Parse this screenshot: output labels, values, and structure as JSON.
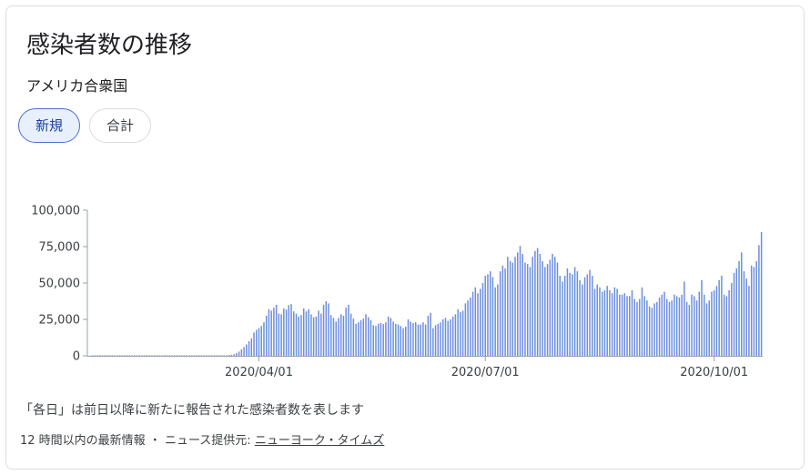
{
  "title": "感染者数の推移",
  "subtitle": "アメリカ合衆国",
  "tabs": [
    {
      "label": "新規",
      "active": true
    },
    {
      "label": "合計",
      "active": false
    }
  ],
  "footnote": "「各日」は前日以降に新たに報告された感染者数を表します",
  "source": {
    "prefix": "12 時間以内の最新情報 ・ ニュース提供元: ",
    "link": "ニューヨーク・タイムズ"
  },
  "colors": {
    "bar": "#6c8ee0",
    "axis": "#9aa0a6",
    "grid": "#e8eaed"
  },
  "chart_data": {
    "type": "bar",
    "title": "感染者数の推移",
    "ylim": [
      0,
      100000
    ],
    "yticks": [
      0,
      25000,
      50000,
      75000,
      100000
    ],
    "ytick_labels": [
      "0",
      "25,000",
      "50,000",
      "75,000",
      "100,000"
    ],
    "xtick_labels": [
      "2020/04/01",
      "2020/07/01",
      "2020/10/01"
    ],
    "xtick_index": [
      67,
      158,
      250
    ],
    "grid": false,
    "start_date": "2020/01/24",
    "values": [
      1,
      0,
      0,
      1,
      0,
      0,
      1,
      2,
      0,
      1,
      0,
      0,
      1,
      0,
      0,
      1,
      2,
      0,
      0,
      1,
      0,
      1,
      1,
      0,
      0,
      1,
      2,
      1,
      0,
      1,
      0,
      1,
      1,
      2,
      0,
      1,
      0,
      1,
      2,
      1,
      1,
      2,
      1,
      1,
      2,
      2,
      3,
      4,
      6,
      10,
      15,
      22,
      60,
      150,
      300,
      500,
      700,
      1100,
      1900,
      2900,
      4500,
      6000,
      7800,
      10000,
      12000,
      16000,
      17800,
      19000,
      20500,
      23000,
      27500,
      32000,
      31000,
      33000,
      35000,
      29000,
      28500,
      32500,
      31800,
      34800,
      35500,
      30500,
      29000,
      27000,
      28000,
      32500,
      30500,
      32000,
      28500,
      26500,
      27000,
      31000,
      29000,
      35000,
      37500,
      36000,
      28000,
      26000,
      23500,
      26000,
      28500,
      27500,
      33000,
      35000,
      29000,
      25500,
      22000,
      23000,
      24500,
      25500,
      28500,
      26500,
      24500,
      21000,
      20500,
      22000,
      22500,
      21800,
      23000,
      27000,
      26000,
      23500,
      22000,
      21500,
      20500,
      19000,
      20000,
      25000,
      23500,
      22500,
      23000,
      21500,
      21500,
      23000,
      21500,
      27500,
      29500,
      19000,
      21000,
      22000,
      23000,
      25000,
      26000,
      24000,
      25000,
      27000,
      28500,
      32000,
      30000,
      31000,
      36000,
      38000,
      40000,
      44000,
      47000,
      43000,
      46000,
      50000,
      55000,
      56000,
      58000,
      54000,
      47000,
      49000,
      58000,
      62000,
      60000,
      68000,
      65000,
      64000,
      68000,
      71000,
      75500,
      70000,
      64000,
      63000,
      61000,
      68000,
      72000,
      74000,
      70000,
      65000,
      61000,
      63000,
      66000,
      70000,
      68000,
      64000,
      55000,
      51000,
      55000,
      60000,
      57000,
      56000,
      61000,
      58000,
      52000,
      49000,
      54000,
      56000,
      59000,
      55000,
      46000,
      49000,
      47000,
      44000,
      45000,
      48000,
      45000,
      43000,
      47000,
      46000,
      42000,
      42000,
      43000,
      41000,
      41000,
      45000,
      39000,
      37000,
      39000,
      47000,
      41000,
      38000,
      34000,
      33000,
      36000,
      37000,
      40000,
      42000,
      44000,
      39000,
      37000,
      38000,
      42000,
      41000,
      40000,
      42000,
      51000,
      37000,
      35000,
      42000,
      41000,
      38000,
      44000,
      52000,
      42000,
      36000,
      38000,
      44000,
      45000,
      48000,
      52000,
      55000,
      42000,
      41000,
      45000,
      50000,
      57000,
      60000,
      65000,
      71000,
      58000,
      53000,
      48000,
      62000,
      61000,
      65000,
      76000,
      85000
    ]
  }
}
